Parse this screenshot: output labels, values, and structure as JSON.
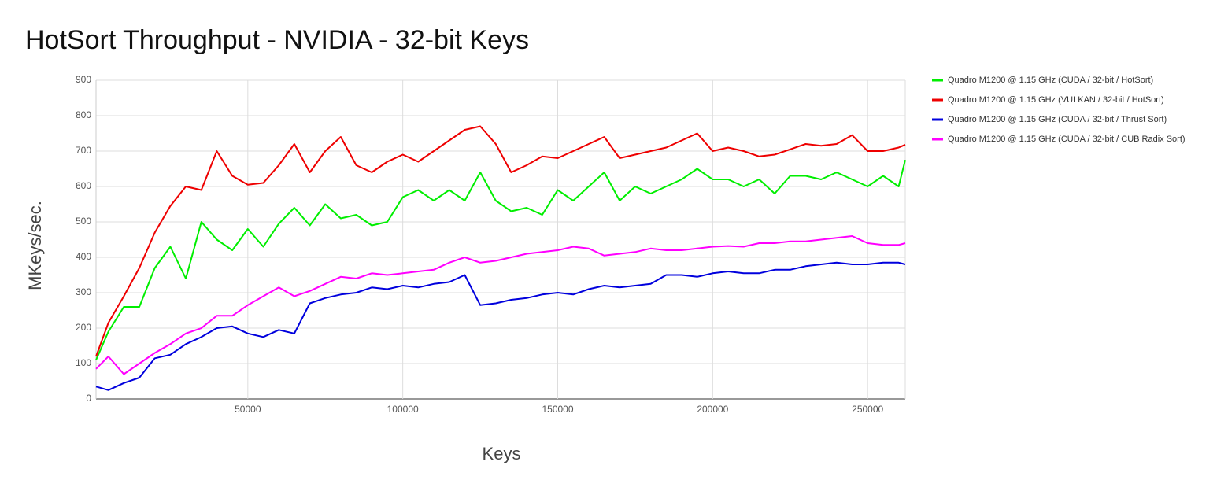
{
  "chart_data": {
    "type": "line",
    "title": "HotSort Throughput - NVIDIA - 32-bit Keys",
    "x_label": "Keys",
    "y_label": "MKeys/sec.",
    "x": [
      1024,
      5000,
      10000,
      15000,
      20000,
      25000,
      30000,
      35000,
      40000,
      45000,
      50000,
      55000,
      60000,
      65000,
      70000,
      75000,
      80000,
      85000,
      90000,
      95000,
      100000,
      105000,
      110000,
      115000,
      120000,
      125000,
      130000,
      135000,
      140000,
      145000,
      150000,
      155000,
      160000,
      165000,
      170000,
      175000,
      180000,
      185000,
      190000,
      195000,
      200000,
      205000,
      210000,
      215000,
      220000,
      225000,
      230000,
      235000,
      240000,
      245000,
      250000,
      255000,
      260000,
      262144
    ],
    "series": [
      {
        "name": "Quadro M1200 @ 1.15 GHz (CUDA / 32-bit / HotSort)",
        "color": "#00ee00",
        "values": [
          110,
          190,
          260,
          260,
          370,
          430,
          340,
          500,
          450,
          420,
          480,
          430,
          495,
          540,
          490,
          550,
          510,
          520,
          490,
          500,
          570,
          590,
          560,
          590,
          560,
          640,
          560,
          530,
          540,
          520,
          590,
          560,
          600,
          640,
          560,
          600,
          580,
          600,
          620,
          650,
          620,
          620,
          600,
          620,
          580,
          630,
          630,
          620,
          640,
          620,
          600,
          630,
          600,
          675
        ]
      },
      {
        "name": "Quadro M1200 @ 1.15 GHz (VULKAN / 32-bit / HotSort)",
        "color": "#ee0000",
        "values": [
          120,
          215,
          290,
          370,
          470,
          545,
          600,
          590,
          700,
          630,
          605,
          610,
          660,
          720,
          640,
          700,
          740,
          660,
          640,
          670,
          690,
          670,
          700,
          730,
          760,
          770,
          720,
          640,
          660,
          685,
          680,
          700,
          720,
          740,
          680,
          690,
          700,
          710,
          730,
          750,
          700,
          710,
          700,
          685,
          690,
          705,
          720,
          715,
          720,
          745,
          700,
          700,
          710,
          718
        ]
      },
      {
        "name": "Quadro M1200 @ 1.15 GHz (CUDA / 32-bit / Thrust Sort)",
        "color": "#0000dd",
        "values": [
          35,
          25,
          45,
          60,
          115,
          125,
          155,
          175,
          200,
          205,
          185,
          175,
          195,
          185,
          270,
          285,
          295,
          300,
          315,
          310,
          320,
          315,
          325,
          330,
          350,
          265,
          270,
          280,
          285,
          295,
          300,
          295,
          310,
          320,
          315,
          320,
          325,
          350,
          350,
          345,
          355,
          360,
          355,
          355,
          365,
          365,
          375,
          380,
          385,
          380,
          380,
          385,
          385,
          380
        ]
      },
      {
        "name": "Quadro M1200 @ 1.15 GHz (CUDA / 32-bit / CUB Radix Sort)",
        "color": "#ff00ff",
        "values": [
          85,
          120,
          70,
          100,
          130,
          155,
          185,
          200,
          235,
          235,
          265,
          290,
          315,
          290,
          305,
          325,
          345,
          340,
          355,
          350,
          355,
          360,
          365,
          385,
          400,
          385,
          390,
          400,
          410,
          415,
          420,
          430,
          425,
          405,
          410,
          415,
          425,
          420,
          420,
          425,
          430,
          432,
          430,
          440,
          440,
          445,
          445,
          450,
          455,
          460,
          440,
          435,
          435,
          440
        ]
      }
    ],
    "xlim": [
      1024,
      262144
    ],
    "ylim": [
      0,
      900
    ],
    "xticks": [
      50000,
      100000,
      150000,
      200000,
      250000
    ],
    "yticks": [
      0,
      100,
      200,
      300,
      400,
      500,
      600,
      700,
      800,
      900
    ],
    "grid": true,
    "legend": "right"
  }
}
